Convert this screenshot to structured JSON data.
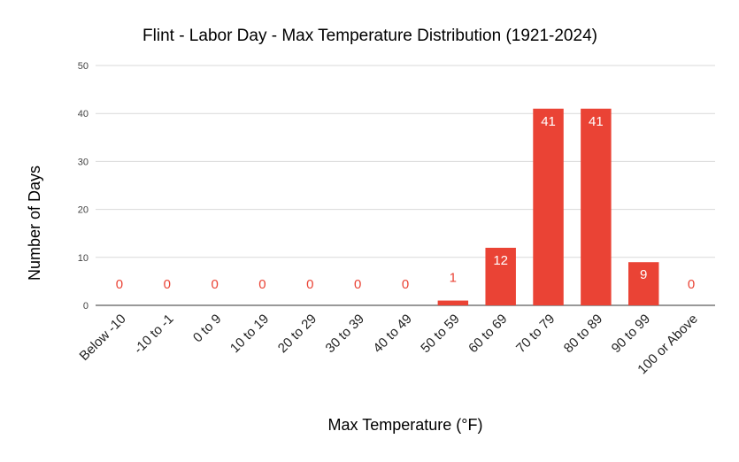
{
  "chart_data": {
    "type": "bar",
    "title": "Flint - Labor Day - Max Temperature Distribution (1921-2024)",
    "xlabel": "Max Temperature (°F)",
    "ylabel": "Number of Days",
    "categories": [
      "Below -10",
      "-10 to -1",
      "0 to 9",
      "10 to 19",
      "20 to 29",
      "30 to 39",
      "40 to 49",
      "50 to 59",
      "60 to 69",
      "70 to 79",
      "80 to 89",
      "90 to 99",
      "100 or Above"
    ],
    "values": [
      0,
      0,
      0,
      0,
      0,
      0,
      0,
      1,
      12,
      41,
      41,
      9,
      0
    ],
    "ylim": [
      0,
      50
    ],
    "yticks": [
      0,
      10,
      20,
      30,
      40,
      50
    ],
    "grid": true,
    "legend": "none",
    "colors": {
      "bar": "#ea4335",
      "grid": "#d9d9d9",
      "text": "#000000",
      "tick": "#444444",
      "label_inside": "#ffffff"
    }
  }
}
